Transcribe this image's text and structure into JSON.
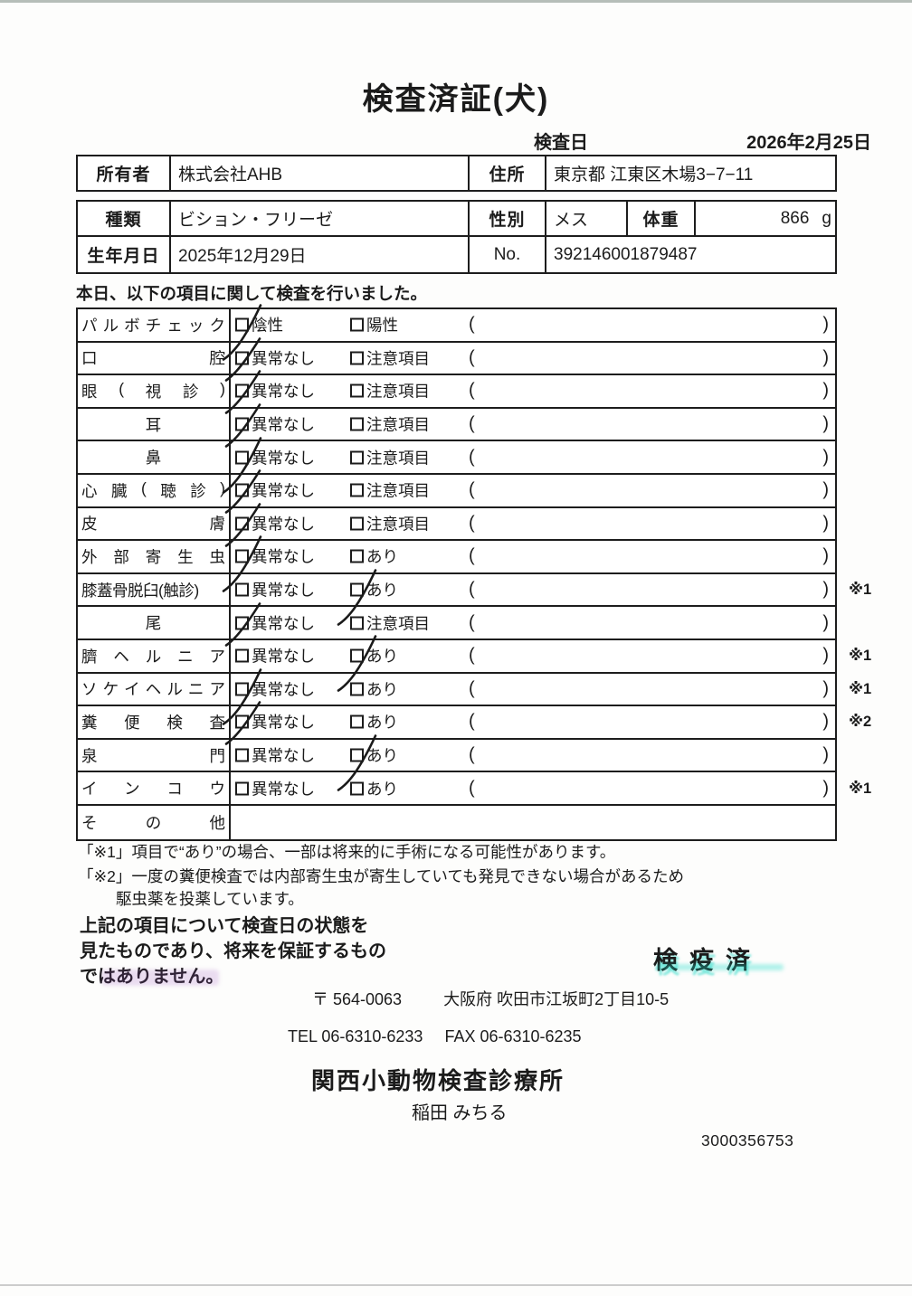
{
  "title": "検査済証(犬)",
  "exam_date": {
    "label": "検査日",
    "value": "2026年2月25日"
  },
  "owner_table": {
    "owner_label": "所有者",
    "owner_value": "株式会社AHB",
    "address_label": "住所",
    "address_value": "東京都 江東区木場3−7−11"
  },
  "animal_table": {
    "breed_label": "種類",
    "breed_value": "ビション・フリーゼ",
    "sex_label": "性別",
    "sex_value": "メス",
    "weight_label": "体重",
    "weight_value": "866",
    "weight_unit": "g",
    "birth_label": "生年月日",
    "birth_value": "2025年12月29日",
    "no_label": "No.",
    "no_value": "392146001879487"
  },
  "intro_text": "本日、以下の項目に関して検査を行いました。",
  "inspection_table": {
    "paren_open": "(",
    "paren_close": ")",
    "rows": [
      {
        "label": "パルボチェック",
        "label_style": "justify",
        "opt1": "陰性",
        "opt2": "陽性",
        "checked": "opt1",
        "tick": "long",
        "paren": true,
        "note": ""
      },
      {
        "label": "口腔",
        "label_style": "justify",
        "opt1": "異常なし",
        "opt2": "注意項目",
        "checked": "opt1",
        "tick": "norm",
        "paren": true,
        "note": ""
      },
      {
        "label": "眼(視診)",
        "label_style": "justify",
        "opt1": "異常なし",
        "opt2": "注意項目",
        "checked": "opt1",
        "tick": "norm",
        "paren": true,
        "note": ""
      },
      {
        "label": "耳",
        "label_style": "center",
        "opt1": "異常なし",
        "opt2": "注意項目",
        "checked": "opt1",
        "tick": "norm",
        "paren": true,
        "note": ""
      },
      {
        "label": "鼻",
        "label_style": "center",
        "opt1": "異常なし",
        "opt2": "注意項目",
        "checked": "opt1",
        "tick": "long",
        "paren": true,
        "note": ""
      },
      {
        "label": "心臓(聴診)",
        "label_style": "justify",
        "opt1": "異常なし",
        "opt2": "注意項目",
        "checked": "opt1",
        "tick": "norm",
        "paren": true,
        "note": ""
      },
      {
        "label": "皮膚",
        "label_style": "justify",
        "opt1": "異常なし",
        "opt2": "注意項目",
        "checked": "opt1",
        "tick": "norm",
        "paren": true,
        "note": ""
      },
      {
        "label": "外部寄生虫",
        "label_style": "justify",
        "opt1": "異常なし",
        "opt2": "あり",
        "checked": "opt1",
        "tick": "long",
        "paren": true,
        "note": ""
      },
      {
        "label": "膝蓋骨脱臼(触診)",
        "label_style": "plain",
        "opt1": "異常なし",
        "opt2": "あり",
        "checked": "opt2",
        "tick": "long",
        "paren": true,
        "note": "※1"
      },
      {
        "label": "尾",
        "label_style": "center",
        "opt1": "異常なし",
        "opt2": "注意項目",
        "checked": "opt1",
        "tick": "norm",
        "paren": true,
        "note": ""
      },
      {
        "label": "臍ヘルニア",
        "label_style": "justify",
        "opt1": "異常なし",
        "opt2": "あり",
        "checked": "opt2",
        "tick": "long",
        "paren": true,
        "note": "※1"
      },
      {
        "label": "ソケイヘルニア",
        "label_style": "justify",
        "opt1": "異常なし",
        "opt2": "あり",
        "checked": "opt1",
        "tick": "long",
        "paren": true,
        "note": "※1"
      },
      {
        "label": "糞便検査",
        "label_style": "justify",
        "opt1": "異常なし",
        "opt2": "あり",
        "checked": "opt1",
        "tick": "norm",
        "paren": true,
        "note": "※2"
      },
      {
        "label": "泉門",
        "label_style": "justify",
        "opt1": "異常なし",
        "opt2": "あり",
        "checked": "opt2",
        "tick": "long",
        "paren": true,
        "note": ""
      },
      {
        "label": "インコウ",
        "label_style": "justify",
        "opt1": "異常なし",
        "opt2": "あり",
        "checked": "none",
        "tick": "",
        "paren": true,
        "note": "※1"
      },
      {
        "label": "その他",
        "label_style": "justify",
        "opt1": "",
        "opt2": "",
        "checked": "none",
        "tick": "",
        "paren": false,
        "note": ""
      }
    ]
  },
  "notes": {
    "note1": "「※1」項目で“あり”の場合、一部は将来的に手術になる可能性があります。",
    "note2_line1": "「※2」一度の糞便検査では内部寄生虫が寄生していても発見できない場合があるため",
    "note2_line2": "駆虫薬を投薬しています。"
  },
  "disclaimer": {
    "line1": "上記の項目について検査日の状態を",
    "line2": "見たものであり、将来を保証するもの",
    "line3": "ではありません。"
  },
  "stamp_text": "検疫済",
  "footer": {
    "postal": "〒 564-0063",
    "address": "大阪府 吹田市江坂町2丁目10-5",
    "tel": "TEL 06-6310-6233",
    "fax": "FAX 06-6310-6235",
    "clinic_name": "関西小動物検査診療所",
    "veterinarian": "稲田 みちる",
    "serial": "3000356753"
  }
}
